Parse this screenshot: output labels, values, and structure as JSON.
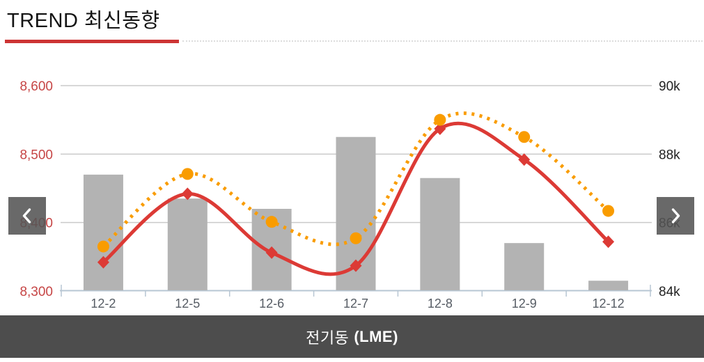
{
  "header": {
    "title": "TREND 최신동향",
    "underline_color": "#cd3434"
  },
  "nav": {
    "prev_icon": "chevron-left",
    "next_icon": "chevron-right"
  },
  "footer": {
    "name": "전기동",
    "code": "(LME)",
    "background": "#4d4d4d"
  },
  "colors": {
    "bar": "#b3b3b3",
    "line_primary": "#dc3a35",
    "line_secondary": "#f99c00",
    "grid": "#cacaca",
    "axis_line": "#b7c6d3",
    "x_tick_text": "#565c64"
  },
  "chart_data": {
    "type": "combo",
    "title": "전기동 (LME)",
    "categories": [
      "12-2",
      "12-5",
      "12-6",
      "12-7",
      "12-8",
      "12-9",
      "12-12"
    ],
    "series": [
      {
        "name": "volume-bars",
        "type": "bar",
        "axis": "right",
        "color": "#b3b3b3",
        "values": [
          87.4,
          86.7,
          86.4,
          88.5,
          87.3,
          85.4,
          84.3
        ]
      },
      {
        "name": "price-solid-line",
        "type": "line",
        "axis": "left",
        "style": "solid",
        "marker": "diamond",
        "color": "#dc3a35",
        "values": [
          8342,
          8442,
          8356,
          8337,
          8537,
          8492,
          8372
        ]
      },
      {
        "name": "price-dotted-line",
        "type": "line",
        "axis": "left",
        "style": "dotted",
        "marker": "circle",
        "color": "#f99c00",
        "values": [
          8365,
          8471,
          8401,
          8377,
          8550,
          8525,
          8417
        ]
      }
    ],
    "left_axis": {
      "min": 8300,
      "max": 8600,
      "color": "#c64545",
      "ticks": [
        {
          "label": "8,600",
          "value": 8600
        },
        {
          "label": "8,500",
          "value": 8500
        },
        {
          "label": "8,400",
          "value": 8400
        },
        {
          "label": "8,300",
          "value": 8300
        }
      ]
    },
    "right_axis": {
      "min": 84,
      "max": 90,
      "color": "#222222",
      "ticks": [
        {
          "label": "90k",
          "value": 90
        },
        {
          "label": "88k",
          "value": 88
        },
        {
          "label": "86k",
          "value": 86
        },
        {
          "label": "84k",
          "value": 84
        }
      ]
    },
    "grid": true,
    "legend": "none"
  }
}
